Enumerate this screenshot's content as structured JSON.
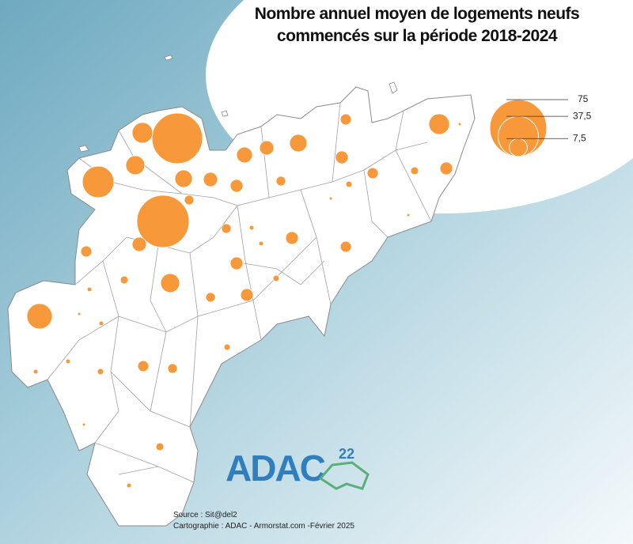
{
  "title": [
    "Nombre annuel moyen de logements neufs",
    "commencés sur la période 2018-2024"
  ],
  "legend": [
    75,
    {
      "value": 37.5,
      "label": "37,5"
    },
    {
      "value": 7.5,
      "label": "7,5"
    }
  ],
  "circle_color": "#f7993a",
  "circles": [
    59,
    63,
    23,
    9.8,
    8.3,
    7,
    4.7,
    5.8,
    4.7,
    7,
    2.8,
    3.7,
    2.8,
    9.8,
    0.2,
    1.4,
    3.7,
    3.7,
    2.1,
    0.9,
    0.2,
    2.1,
    4.7,
    2.8,
    2.1,
    0.5,
    3.7,
    0.5,
    2.8,
    3.7,
    1.4,
    8.3,
    0.9,
    3.7,
    2.1,
    14.8,
    0.5,
    0.2,
    0.5,
    0.9,
    0.5,
    2.8,
    2.1,
    0.9,
    0.5,
    0.2,
    1.4,
    0.5,
    0.2
  ],
  "logo": {
    "name": "ADAC",
    "number": "22"
  },
  "source": "Source : Sit@del2",
  "credit": "Cartographie : ADAC - Armorstat.com -Février 2025"
}
